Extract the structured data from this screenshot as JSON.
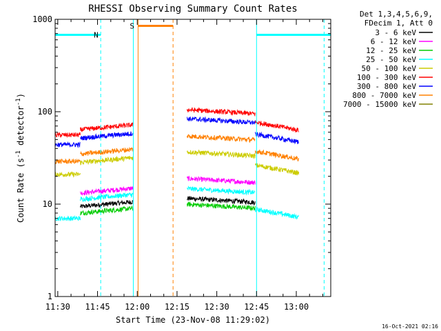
{
  "chart_data": {
    "type": "line",
    "title": "RHESSI Observing Summary Count Rates",
    "xlabel": "Start Time (23-Nov-08 11:29:02)",
    "ylabel_main": "Count Rate (s",
    "ylabel_sup1": "-1",
    "ylabel_mid": " detector",
    "ylabel_sup2": "-1",
    "ylabel_end": ")",
    "yscale": "log",
    "ylim": [
      1,
      1000
    ],
    "xlim_minutes": [
      689.0,
      793.0
    ],
    "x_ticks": [
      {
        "label": "11:30",
        "minutes": 690
      },
      {
        "label": "11:45",
        "minutes": 705
      },
      {
        "label": "12:00",
        "minutes": 720
      },
      {
        "label": "12:15",
        "minutes": 735
      },
      {
        "label": "12:30",
        "minutes": 750
      },
      {
        "label": "12:45",
        "minutes": 765
      },
      {
        "label": "13:00",
        "minutes": 780
      }
    ],
    "y_ticks": [
      {
        "label": "1",
        "value": 1
      },
      {
        "label": "10",
        "value": 10
      },
      {
        "label": "100",
        "value": 100
      },
      {
        "label": "1000",
        "value": 1000
      }
    ],
    "legend_header": [
      "Det 1,3,4,5,6,9,",
      "FDecim 1, Att 0"
    ],
    "legend_placement": "right",
    "series": [
      {
        "name": "3 - 6 keV",
        "color": "#000000",
        "bin": 0
      },
      {
        "name": "6 - 12 keV",
        "color": "#ff00ff",
        "bin": 1
      },
      {
        "name": "12 - 25 keV",
        "color": "#00cc00",
        "bin": 2
      },
      {
        "name": "25 - 50 keV",
        "color": "#00ffff",
        "bin": 3
      },
      {
        "name": "50 - 100 keV",
        "color": "#cccc00",
        "bin": 4
      },
      {
        "name": "100 - 300 keV",
        "color": "#ff0000",
        "bin": 5
      },
      {
        "name": "300 - 800 keV",
        "color": "#0000ff",
        "bin": 6
      },
      {
        "name": "800 - 7000 keV",
        "color": "#ff8000",
        "bin": 7
      },
      {
        "name": "7000 - 15000 keV",
        "color": "#808000",
        "bin": 8
      }
    ],
    "segments": [
      {
        "start": 689.0,
        "end": 698.5,
        "levels": [
          1.0,
          1.0,
          1.0,
          7.0,
          21.0,
          56.0,
          44.0,
          29.0,
          1.0
        ],
        "trend": 0
      },
      {
        "start": 698.5,
        "end": 718.5,
        "levels": [
          10.0,
          14.0,
          8.5,
          12.0,
          30.0,
          68.0,
          55.0,
          37.0,
          1.0
        ],
        "trend": 0.12
      },
      {
        "start": 738.8,
        "end": 764.5,
        "levels": [
          11.0,
          18.0,
          9.5,
          14.0,
          35.0,
          100.0,
          80.0,
          52.0,
          1.0
        ],
        "trend": -0.1
      },
      {
        "start": 764.5,
        "end": 781.0,
        "levels": [
          1.0,
          1.0,
          1.0,
          8.0,
          24.0,
          70.0,
          52.0,
          34.0,
          1.0
        ],
        "trend": -0.2
      }
    ],
    "flags": [
      {
        "label": "N",
        "color": "#00ffff",
        "start": 689.0,
        "end": 706.2,
        "level": 680
      },
      {
        "label": "",
        "color": "#00ffff",
        "start": 765.0,
        "end": 793.0,
        "level": 680
      },
      {
        "label": "S",
        "color": "#ff8000",
        "start": 720.3,
        "end": 733.5,
        "level": 850
      }
    ],
    "flag_lines": [
      {
        "minutes": 706.2,
        "color": "#00ffff",
        "dash": true
      },
      {
        "minutes": 718.5,
        "color": "#00ffff",
        "dash": false
      },
      {
        "minutes": 765.0,
        "color": "#00ffff",
        "dash": false
      },
      {
        "minutes": 790.5,
        "color": "#00ffff",
        "dash": true
      },
      {
        "minutes": 720.3,
        "color": "#ff8000",
        "dash": false
      },
      {
        "minutes": 733.5,
        "color": "#ff8000",
        "dash": true
      }
    ]
  },
  "footer_timestamp": "16-Oct-2021 02:16"
}
